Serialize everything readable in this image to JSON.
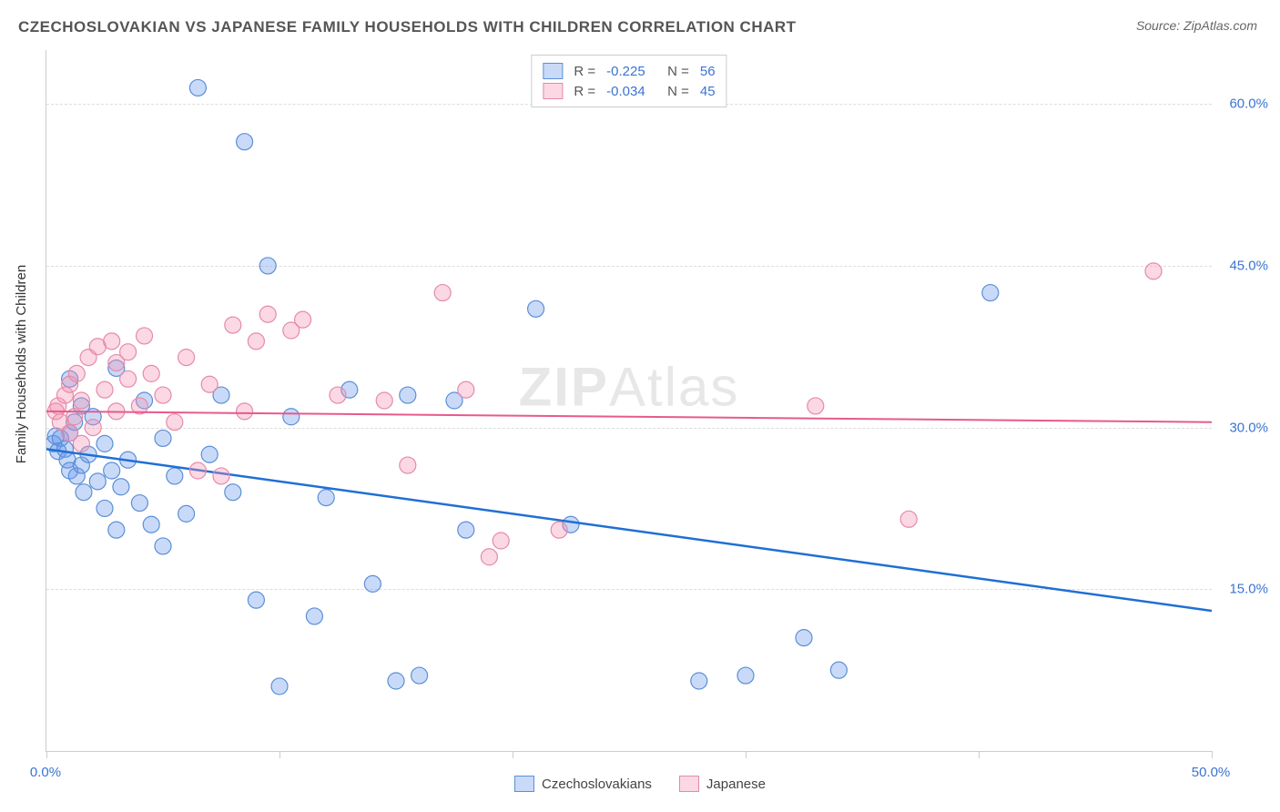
{
  "title": "CZECHOSLOVAKIAN VS JAPANESE FAMILY HOUSEHOLDS WITH CHILDREN CORRELATION CHART",
  "source": "Source: ZipAtlas.com",
  "ylabel": "Family Households with Children",
  "watermark_bold": "ZIP",
  "watermark_light": "Atlas",
  "chart": {
    "type": "scatter",
    "xlim": [
      0,
      50
    ],
    "ylim": [
      0,
      65
    ],
    "x_ticks": [
      0,
      10,
      20,
      30,
      40,
      50
    ],
    "x_tick_labels_shown": {
      "0": "0.0%",
      "50": "50.0%"
    },
    "y_ticks": [
      15,
      30,
      45,
      60
    ],
    "y_tick_labels": [
      "15.0%",
      "30.0%",
      "45.0%",
      "60.0%"
    ],
    "x_tick_label_color": "#3b74d1",
    "y_tick_label_color": "#3b74d1",
    "grid_color": "#dddddd",
    "background_color": "#ffffff",
    "axis_color": "#cccccc",
    "series": [
      {
        "name": "Czechoslovakians",
        "fill_color": "rgba(100,149,237,0.35)",
        "stroke_color": "#5b8fd6",
        "marker_radius": 9,
        "line_color": "#1f6fd4",
        "line_width": 2.5,
        "regression": {
          "x1": 0,
          "y1": 28.0,
          "x2": 50,
          "y2": 13.0
        },
        "R": "-0.225",
        "N": "56",
        "points": [
          [
            0.3,
            28.5
          ],
          [
            0.4,
            29.2
          ],
          [
            0.5,
            27.8
          ],
          [
            0.6,
            29.0
          ],
          [
            0.8,
            28.0
          ],
          [
            0.9,
            27.0
          ],
          [
            1.0,
            26.0
          ],
          [
            1.0,
            29.5
          ],
          [
            1.2,
            30.5
          ],
          [
            1.3,
            25.5
          ],
          [
            1.5,
            26.5
          ],
          [
            1.5,
            32.0
          ],
          [
            1.6,
            24.0
          ],
          [
            1.8,
            27.5
          ],
          [
            2.0,
            31.0
          ],
          [
            2.2,
            25.0
          ],
          [
            2.5,
            22.5
          ],
          [
            2.5,
            28.5
          ],
          [
            2.8,
            26.0
          ],
          [
            3.0,
            20.5
          ],
          [
            3.2,
            24.5
          ],
          [
            3.5,
            27.0
          ],
          [
            4.0,
            23.0
          ],
          [
            4.2,
            32.5
          ],
          [
            4.5,
            21.0
          ],
          [
            5.0,
            19.0
          ],
          [
            5.0,
            29.0
          ],
          [
            5.5,
            25.5
          ],
          [
            6.0,
            22.0
          ],
          [
            6.5,
            61.5
          ],
          [
            7.0,
            27.5
          ],
          [
            7.5,
            33.0
          ],
          [
            8.0,
            24.0
          ],
          [
            8.5,
            56.5
          ],
          [
            9.0,
            14.0
          ],
          [
            9.5,
            45.0
          ],
          [
            10.0,
            6.0
          ],
          [
            10.5,
            31.0
          ],
          [
            11.5,
            12.5
          ],
          [
            12.0,
            23.5
          ],
          [
            13.0,
            33.5
          ],
          [
            14.0,
            15.5
          ],
          [
            15.0,
            6.5
          ],
          [
            15.5,
            33.0
          ],
          [
            16.0,
            7.0
          ],
          [
            17.5,
            32.5
          ],
          [
            18.0,
            20.5
          ],
          [
            21.0,
            41.0
          ],
          [
            22.5,
            21.0
          ],
          [
            28.0,
            6.5
          ],
          [
            30.0,
            7.0
          ],
          [
            32.5,
            10.5
          ],
          [
            34.0,
            7.5
          ],
          [
            40.5,
            42.5
          ],
          [
            1.0,
            34.5
          ],
          [
            3.0,
            35.5
          ]
        ]
      },
      {
        "name": "Japanese",
        "fill_color": "rgba(244,143,177,0.35)",
        "stroke_color": "#e68aa8",
        "marker_radius": 9,
        "line_color": "#e75a8d",
        "line_width": 2,
        "regression": {
          "x1": 0,
          "y1": 31.5,
          "x2": 50,
          "y2": 30.5
        },
        "R": "-0.034",
        "N": "45",
        "points": [
          [
            0.4,
            31.5
          ],
          [
            0.5,
            32.0
          ],
          [
            0.6,
            30.5
          ],
          [
            0.8,
            33.0
          ],
          [
            1.0,
            29.5
          ],
          [
            1.0,
            34.0
          ],
          [
            1.2,
            31.0
          ],
          [
            1.3,
            35.0
          ],
          [
            1.5,
            32.5
          ],
          [
            1.8,
            36.5
          ],
          [
            2.0,
            30.0
          ],
          [
            2.2,
            37.5
          ],
          [
            2.5,
            33.5
          ],
          [
            2.8,
            38.0
          ],
          [
            3.0,
            31.5
          ],
          [
            3.0,
            36.0
          ],
          [
            3.5,
            34.5
          ],
          [
            3.5,
            37.0
          ],
          [
            4.0,
            32.0
          ],
          [
            4.2,
            38.5
          ],
          [
            4.5,
            35.0
          ],
          [
            5.0,
            33.0
          ],
          [
            5.5,
            30.5
          ],
          [
            6.0,
            36.5
          ],
          [
            6.5,
            26.0
          ],
          [
            7.0,
            34.0
          ],
          [
            7.5,
            25.5
          ],
          [
            8.0,
            39.5
          ],
          [
            8.5,
            31.5
          ],
          [
            9.0,
            38.0
          ],
          [
            9.5,
            40.5
          ],
          [
            10.5,
            39.0
          ],
          [
            11.0,
            40.0
          ],
          [
            12.5,
            33.0
          ],
          [
            14.5,
            32.5
          ],
          [
            15.5,
            26.5
          ],
          [
            17.0,
            42.5
          ],
          [
            18.0,
            33.5
          ],
          [
            19.0,
            18.0
          ],
          [
            19.5,
            19.5
          ],
          [
            22.0,
            20.5
          ],
          [
            33.0,
            32.0
          ],
          [
            37.0,
            21.5
          ],
          [
            47.5,
            44.5
          ],
          [
            1.5,
            28.5
          ]
        ]
      }
    ],
    "legend_bottom": [
      {
        "swatch_fill": "rgba(100,149,237,0.35)",
        "swatch_stroke": "#5b8fd6",
        "label": "Czechoslovakians"
      },
      {
        "swatch_fill": "rgba(244,143,177,0.35)",
        "swatch_stroke": "#e68aa8",
        "label": "Japanese"
      }
    ],
    "legend_top_stat_labels": {
      "R": "R  =",
      "N": "N  ="
    },
    "legend_top_value_color": "#3b74d1",
    "legend_top_label_color": "#555555"
  }
}
